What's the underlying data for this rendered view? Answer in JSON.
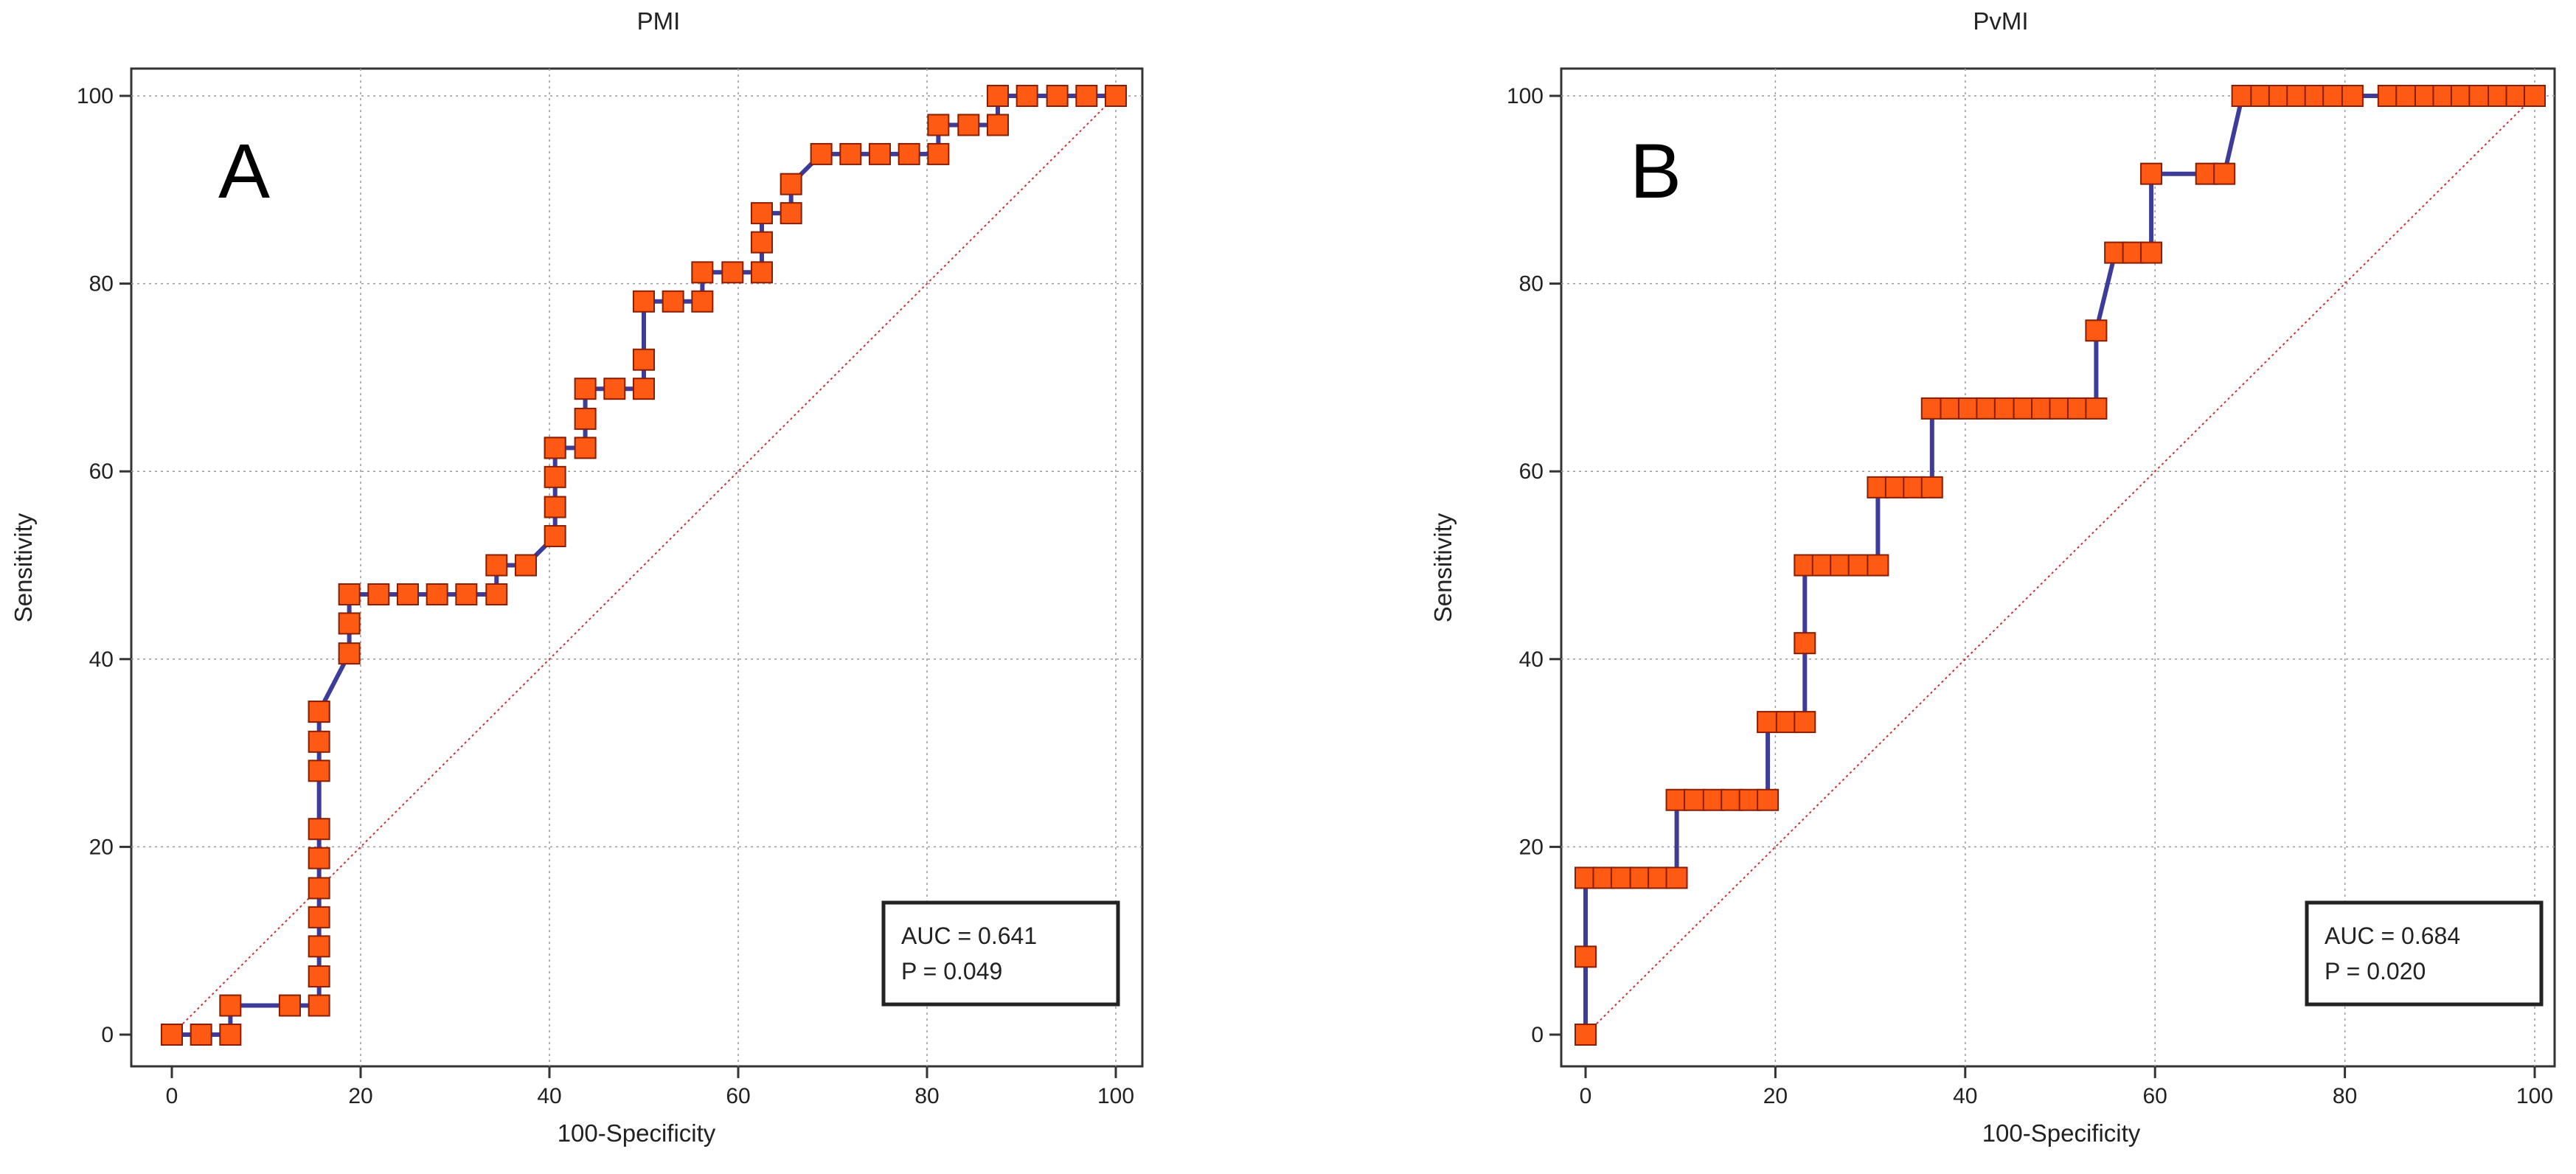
{
  "chart_data": [
    {
      "type": "line",
      "title": "PMI",
      "panel_label": "A",
      "xlabel": "100-Specificity",
      "ylabel": "Sensitivity",
      "xlim": [
        0,
        100
      ],
      "ylim": [
        0,
        100
      ],
      "xticks": [
        0,
        20,
        40,
        60,
        80,
        100
      ],
      "yticks": [
        0,
        20,
        40,
        60,
        80,
        100
      ],
      "grid": true,
      "annotation": {
        "auc": "AUC = 0.641",
        "p": "P = 0.049"
      },
      "series": [
        {
          "name": "ROC curve",
          "color": "#3e3c9a",
          "marker_color": "#ff5a14",
          "x": [
            0,
            3.1,
            6.2,
            6.2,
            12.5,
            15.6,
            15.6,
            15.6,
            15.6,
            15.6,
            15.6,
            15.6,
            15.6,
            15.6,
            15.6,
            15.6,
            18.8,
            18.8,
            18.8,
            21.9,
            25,
            28.1,
            31.2,
            34.4,
            34.4,
            37.5,
            40.6,
            40.6,
            40.6,
            40.6,
            40.6,
            43.8,
            43.8,
            43.8,
            46.9,
            50,
            50,
            50,
            53.1,
            56.2,
            56.2,
            59.4,
            62.5,
            62.5,
            62.5,
            65.6,
            65.6,
            68.8,
            71.9,
            75,
            78.1,
            81.2,
            81.2,
            84.4,
            87.5,
            87.5,
            90.6,
            93.8,
            96.9,
            100
          ],
          "y": [
            0,
            0,
            0,
            3.1,
            3.1,
            3.1,
            6.2,
            9.4,
            12.5,
            15.6,
            18.8,
            21.9,
            28.1,
            31.2,
            34.4,
            34.4,
            40.6,
            43.8,
            46.9,
            46.9,
            46.9,
            46.9,
            46.9,
            46.9,
            50,
            50,
            53.1,
            56.2,
            59.4,
            62.5,
            62.5,
            62.5,
            65.6,
            68.8,
            68.8,
            68.8,
            71.9,
            78.1,
            78.1,
            78.1,
            81.2,
            81.2,
            81.2,
            84.4,
            87.5,
            87.5,
            90.6,
            93.8,
            93.8,
            93.8,
            93.8,
            93.8,
            96.9,
            96.9,
            96.9,
            100,
            100,
            100,
            100,
            100
          ]
        },
        {
          "name": "Reference line",
          "color": "#cc3333",
          "x": [
            0,
            100
          ],
          "y": [
            0,
            100
          ]
        }
      ]
    },
    {
      "type": "line",
      "title": "PvMI",
      "panel_label": "B",
      "xlabel": "100-Specificity",
      "ylabel": "Sensitivity",
      "xlim": [
        0,
        100
      ],
      "ylim": [
        0,
        100
      ],
      "xticks": [
        0,
        20,
        40,
        60,
        80,
        100
      ],
      "yticks": [
        0,
        20,
        40,
        60,
        80,
        100
      ],
      "grid": true,
      "annotation": {
        "auc": "AUC = 0.684",
        "p": "P = 0.020"
      },
      "series": [
        {
          "name": "ROC curve",
          "color": "#3e3c9a",
          "marker_color": "#ff5a14",
          "x": [
            0,
            0,
            0,
            1.9,
            3.8,
            5.8,
            7.7,
            9.6,
            9.6,
            11.5,
            13.5,
            15.4,
            17.3,
            19.2,
            19.2,
            21.2,
            23.1,
            23.1,
            23.1,
            25,
            26.9,
            28.8,
            30.8,
            30.8,
            32.7,
            34.6,
            36.5,
            36.5,
            38.5,
            40.4,
            42.3,
            44.2,
            46.2,
            48.1,
            50,
            51.9,
            53.8,
            53.8,
            55.8,
            57.7,
            59.6,
            59.6,
            65.4,
            67.3,
            69.2,
            71.2,
            73.1,
            75,
            76.9,
            78.8,
            80.8,
            84.6,
            86.5,
            88.5,
            90.4,
            92.3,
            94.2,
            96.2,
            98.1,
            100
          ],
          "y": [
            0,
            8.3,
            16.7,
            16.7,
            16.7,
            16.7,
            16.7,
            16.7,
            25,
            25,
            25,
            25,
            25,
            25,
            33.3,
            33.3,
            33.3,
            41.7,
            50,
            50,
            50,
            50,
            50,
            58.3,
            58.3,
            58.3,
            58.3,
            66.7,
            66.7,
            66.7,
            66.7,
            66.7,
            66.7,
            66.7,
            66.7,
            66.7,
            66.7,
            75,
            83.3,
            83.3,
            83.3,
            91.7,
            91.7,
            91.7,
            100,
            100,
            100,
            100,
            100,
            100,
            100,
            100,
            100,
            100,
            100,
            100,
            100,
            100,
            100,
            100
          ]
        },
        {
          "name": "Reference line",
          "color": "#cc3333",
          "x": [
            0,
            100
          ],
          "y": [
            0,
            100
          ]
        }
      ]
    }
  ]
}
